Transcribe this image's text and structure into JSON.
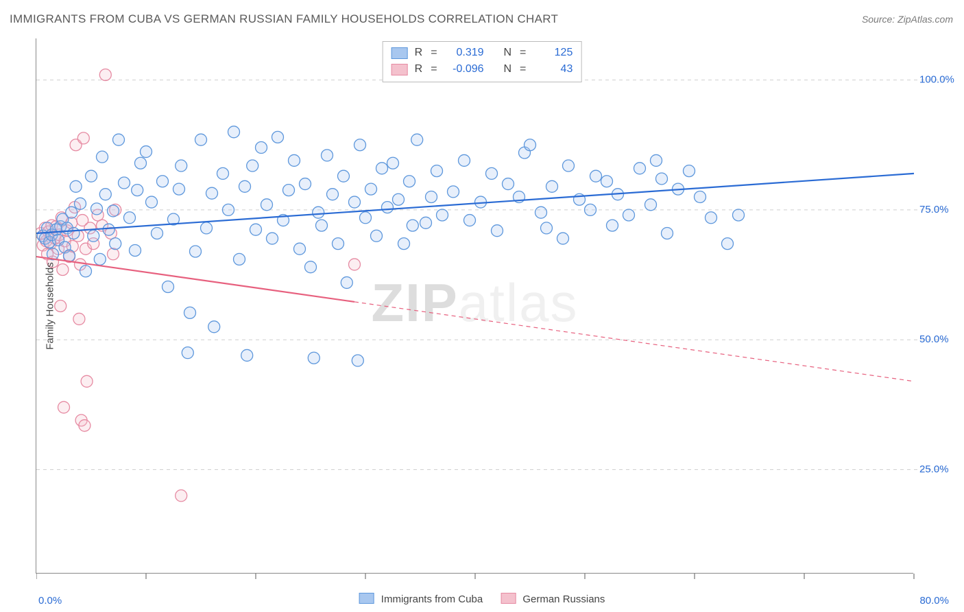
{
  "title": "IMMIGRANTS FROM CUBA VS GERMAN RUSSIAN FAMILY HOUSEHOLDS CORRELATION CHART",
  "source_label": "Source: ZipAtlas.com",
  "watermark_prefix": "ZIP",
  "watermark_suffix": "atlas",
  "ylabel": "Family Households",
  "chart": {
    "type": "scatter",
    "background_color": "#ffffff",
    "grid_color": "#cfcfcf",
    "axis_color": "#888888",
    "xlim": [
      0,
      80
    ],
    "ylim": [
      5,
      108
    ],
    "x_tick_step": 10,
    "y_ticks": [
      25,
      50,
      75,
      100
    ],
    "xlim_label_left": "0.0%",
    "xlim_label_right": "80.0%",
    "xlim_label_color": "#2a6bd4",
    "y_tick_label_color": "#2a6bd4",
    "y_tick_labels": [
      "25.0%",
      "50.0%",
      "75.0%",
      "100.0%"
    ],
    "marker_radius": 8.5,
    "marker_stroke_width": 1.3,
    "marker_fill_opacity": 0.28,
    "trend_line_width": 2.2,
    "trend_dash_pattern": "6 5",
    "label_fontsize": 15,
    "title_fontsize": 17,
    "title_color": "#5a5a5a",
    "source_color": "#7a7a7a"
  },
  "series": {
    "cuba": {
      "label": "Immigrants from Cuba",
      "color_fill": "#a8c7ef",
      "color_stroke": "#5d97dc",
      "line_color": "#2a6bd4",
      "legend_r": "0.319",
      "legend_n": "125",
      "trend": {
        "x1": 0,
        "y1": 70.5,
        "x2": 80,
        "y2": 82.0,
        "solid_until_x": 80
      },
      "points": [
        [
          0.6,
          70
        ],
        [
          0.8,
          69.5
        ],
        [
          1.0,
          71.5
        ],
        [
          1.2,
          68.8
        ],
        [
          1.4,
          70.2
        ],
        [
          1.5,
          66.5
        ],
        [
          1.8,
          71.2
        ],
        [
          2.0,
          69.2
        ],
        [
          2.2,
          71.8
        ],
        [
          2.4,
          73.2
        ],
        [
          2.6,
          67.8
        ],
        [
          2.8,
          71.5
        ],
        [
          3.0,
          66.2
        ],
        [
          3.2,
          74.5
        ],
        [
          3.4,
          70.5
        ],
        [
          3.6,
          79.5
        ],
        [
          4.0,
          76.2
        ],
        [
          4.5,
          63.2
        ],
        [
          5.0,
          81.5
        ],
        [
          5.2,
          70.0
        ],
        [
          5.5,
          75.2
        ],
        [
          5.8,
          65.5
        ],
        [
          6.0,
          85.2
        ],
        [
          6.3,
          78.0
        ],
        [
          6.6,
          71.2
        ],
        [
          7.0,
          74.8
        ],
        [
          7.2,
          68.5
        ],
        [
          7.5,
          88.5
        ],
        [
          8.0,
          80.2
        ],
        [
          8.5,
          73.5
        ],
        [
          9.0,
          67.2
        ],
        [
          9.2,
          78.8
        ],
        [
          9.5,
          84.0
        ],
        [
          10.0,
          86.2
        ],
        [
          10.5,
          76.5
        ],
        [
          11.0,
          70.5
        ],
        [
          11.5,
          80.5
        ],
        [
          12.0,
          60.2
        ],
        [
          12.5,
          73.2
        ],
        [
          13.0,
          79.0
        ],
        [
          13.2,
          83.5
        ],
        [
          13.8,
          47.5
        ],
        [
          14.0,
          55.2
        ],
        [
          14.5,
          67.0
        ],
        [
          15.0,
          88.5
        ],
        [
          15.5,
          71.5
        ],
        [
          16.0,
          78.2
        ],
        [
          16.2,
          52.5
        ],
        [
          17.0,
          82.0
        ],
        [
          17.5,
          75.0
        ],
        [
          18.0,
          90.0
        ],
        [
          18.5,
          65.5
        ],
        [
          19.0,
          79.5
        ],
        [
          19.2,
          47.0
        ],
        [
          19.7,
          83.5
        ],
        [
          20.0,
          71.2
        ],
        [
          20.5,
          87.0
        ],
        [
          21.0,
          76.0
        ],
        [
          21.5,
          69.5
        ],
        [
          22.0,
          89.0
        ],
        [
          22.5,
          73.0
        ],
        [
          23.0,
          78.8
        ],
        [
          23.5,
          84.5
        ],
        [
          24.0,
          67.5
        ],
        [
          24.5,
          80.0
        ],
        [
          25.0,
          64.0
        ],
        [
          25.3,
          46.5
        ],
        [
          25.7,
          74.5
        ],
        [
          26.0,
          72.0
        ],
        [
          26.5,
          85.5
        ],
        [
          27.0,
          78.0
        ],
        [
          27.5,
          68.5
        ],
        [
          28.0,
          81.5
        ],
        [
          28.3,
          61.0
        ],
        [
          29.0,
          76.5
        ],
        [
          29.5,
          87.5
        ],
        [
          30.0,
          73.5
        ],
        [
          30.5,
          79.0
        ],
        [
          31.0,
          70.0
        ],
        [
          31.5,
          83.0
        ],
        [
          32.0,
          75.5
        ],
        [
          32.5,
          84.0
        ],
        [
          33.0,
          77.0
        ],
        [
          33.5,
          68.5
        ],
        [
          34.0,
          80.5
        ],
        [
          34.7,
          88.5
        ],
        [
          35.5,
          72.5
        ],
        [
          36.0,
          77.5
        ],
        [
          36.5,
          82.5
        ],
        [
          37.0,
          74.0
        ],
        [
          38.0,
          78.5
        ],
        [
          39.0,
          84.5
        ],
        [
          39.5,
          73.0
        ],
        [
          40.5,
          76.5
        ],
        [
          41.5,
          82.0
        ],
        [
          42.0,
          71.0
        ],
        [
          43.0,
          80.0
        ],
        [
          44.0,
          77.5
        ],
        [
          44.5,
          86.0
        ],
        [
          45.0,
          87.5
        ],
        [
          46.0,
          74.5
        ],
        [
          47.0,
          79.5
        ],
        [
          48.0,
          69.5
        ],
        [
          48.5,
          83.5
        ],
        [
          49.5,
          77.0
        ],
        [
          50.5,
          75.0
        ],
        [
          51.0,
          81.5
        ],
        [
          52.0,
          80.5
        ],
        [
          53.0,
          78.0
        ],
        [
          54.0,
          74.0
        ],
        [
          55.0,
          83.0
        ],
        [
          56.0,
          76.0
        ],
        [
          57.0,
          81.0
        ],
        [
          57.5,
          70.5
        ],
        [
          58.5,
          79.0
        ],
        [
          59.5,
          82.5
        ],
        [
          60.5,
          77.5
        ],
        [
          61.5,
          73.5
        ],
        [
          63.0,
          68.5
        ],
        [
          64.0,
          74.0
        ],
        [
          56.5,
          84.5
        ],
        [
          52.5,
          72.0
        ],
        [
          46.5,
          71.5
        ],
        [
          29.3,
          46.0
        ],
        [
          34.3,
          72.0
        ]
      ]
    },
    "german": {
      "label": "German Russians",
      "color_fill": "#f4c1cd",
      "color_stroke": "#e68aa2",
      "line_color": "#e7607e",
      "legend_r": "-0.096",
      "legend_n": "43",
      "trend": {
        "x1": 0,
        "y1": 66.0,
        "x2": 80,
        "y2": 42.0,
        "solid_until_x": 29
      },
      "points": [
        [
          0.4,
          70.5
        ],
        [
          0.6,
          68.2
        ],
        [
          0.8,
          71.5
        ],
        [
          0.9,
          69.0
        ],
        [
          1.0,
          66.5
        ],
        [
          1.1,
          70.8
        ],
        [
          1.3,
          68.5
        ],
        [
          1.4,
          72.0
        ],
        [
          1.5,
          65.0
        ],
        [
          1.7,
          69.5
        ],
        [
          1.8,
          71.8
        ],
        [
          2.0,
          67.5
        ],
        [
          2.1,
          70.2
        ],
        [
          2.3,
          73.5
        ],
        [
          2.4,
          63.5
        ],
        [
          2.6,
          69.0
        ],
        [
          2.8,
          71.0
        ],
        [
          3.0,
          66.0
        ],
        [
          3.2,
          72.5
        ],
        [
          3.3,
          68.0
        ],
        [
          3.5,
          75.5
        ],
        [
          3.8,
          70.0
        ],
        [
          4.0,
          64.5
        ],
        [
          4.2,
          73.0
        ],
        [
          4.5,
          67.5
        ],
        [
          3.6,
          87.5
        ],
        [
          4.3,
          88.8
        ],
        [
          4.9,
          71.5
        ],
        [
          5.2,
          68.5
        ],
        [
          5.6,
          74.0
        ],
        [
          6.0,
          72.0
        ],
        [
          6.3,
          101.0
        ],
        [
          6.8,
          70.5
        ],
        [
          7.0,
          66.5
        ],
        [
          7.2,
          75.0
        ],
        [
          3.9,
          54.0
        ],
        [
          4.6,
          42.0
        ],
        [
          2.2,
          56.5
        ],
        [
          2.5,
          37.0
        ],
        [
          4.1,
          34.5
        ],
        [
          4.4,
          33.5
        ],
        [
          13.2,
          20.0
        ],
        [
          29.0,
          64.5
        ]
      ]
    }
  },
  "stats_legend": {
    "r_label": "R",
    "n_label": "N",
    "eq": "=",
    "value_color": "#2a6bd4",
    "border_color": "#bbbbbb"
  }
}
